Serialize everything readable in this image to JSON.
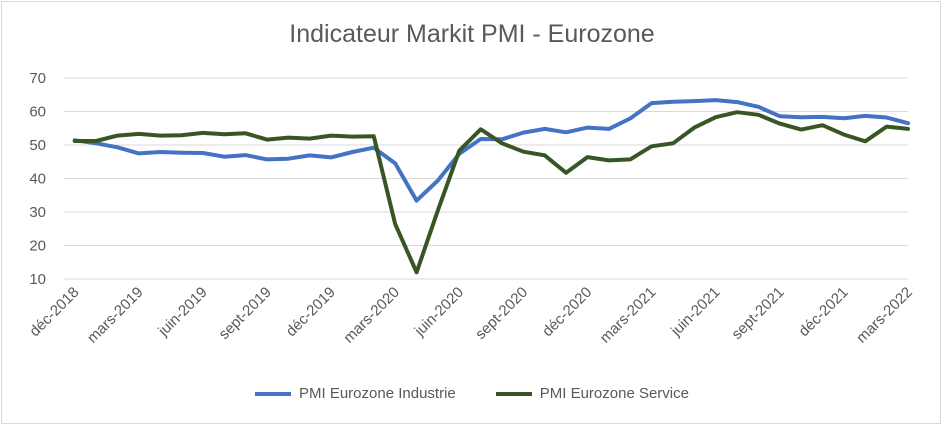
{
  "chart_data": {
    "type": "line",
    "title": "Indicateur Markit PMI - Eurozone",
    "xlabel": "",
    "ylabel": "",
    "ylim": [
      10,
      70
    ],
    "yticks": [
      10,
      20,
      30,
      40,
      50,
      60,
      70
    ],
    "grid": true,
    "legend_position": "bottom",
    "x": [
      "déc-2018",
      "janv-2019",
      "févr-2019",
      "mars-2019",
      "avr-2019",
      "mai-2019",
      "juin-2019",
      "juil-2019",
      "août-2019",
      "sept-2019",
      "oct-2019",
      "nov-2019",
      "déc-2019",
      "janv-2020",
      "févr-2020",
      "mars-2020",
      "avr-2020",
      "mai-2020",
      "juin-2020",
      "juil-2020",
      "août-2020",
      "sept-2020",
      "oct-2020",
      "nov-2020",
      "déc-2020",
      "janv-2021",
      "févr-2021",
      "mars-2021",
      "avr-2021",
      "mai-2021",
      "juin-2021",
      "juil-2021",
      "août-2021",
      "sept-2021",
      "oct-2021",
      "nov-2021",
      "déc-2021",
      "janv-2022",
      "févr-2022",
      "mars-2022"
    ],
    "x_tick_labels": [
      "déc-2018",
      "mars-2019",
      "juin-2019",
      "sept-2019",
      "déc-2019",
      "mars-2020",
      "juin-2020",
      "sept-2020",
      "déc-2020",
      "mars-2021",
      "juin-2021",
      "sept-2021",
      "déc-2021",
      "mars-2022"
    ],
    "series": [
      {
        "name": "PMI Eurozone Industrie",
        "color": "#4472c4",
        "values": [
          51.4,
          50.5,
          49.3,
          47.5,
          47.9,
          47.7,
          47.6,
          46.5,
          47.0,
          45.7,
          45.9,
          46.9,
          46.3,
          47.9,
          49.2,
          44.5,
          33.4,
          39.4,
          47.4,
          51.8,
          51.7,
          53.7,
          54.8,
          53.8,
          55.2,
          54.8,
          57.9,
          62.5,
          62.9,
          63.1,
          63.4,
          62.8,
          61.4,
          58.6,
          58.3,
          58.4,
          58.0,
          58.7,
          58.2,
          56.5
        ]
      },
      {
        "name": "PMI Eurozone Service",
        "color": "#375623",
        "values": [
          51.2,
          51.2,
          52.8,
          53.3,
          52.8,
          52.9,
          53.6,
          53.2,
          53.5,
          51.6,
          52.2,
          51.9,
          52.8,
          52.5,
          52.6,
          26.4,
          12.0,
          30.5,
          48.3,
          54.7,
          50.5,
          48.0,
          46.9,
          41.7,
          46.4,
          45.4,
          45.7,
          49.6,
          50.5,
          55.2,
          58.3,
          59.8,
          59.0,
          56.4,
          54.6,
          55.9,
          53.1,
          51.1,
          55.5,
          54.8
        ]
      }
    ]
  }
}
